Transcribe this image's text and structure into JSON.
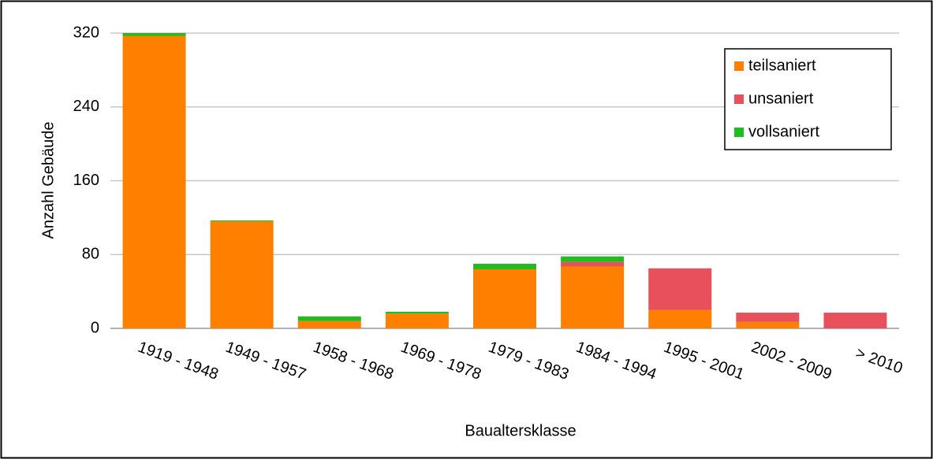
{
  "chart_data": {
    "type": "stacked_bar",
    "categories": [
      "1919 - 1948",
      "1949 - 1957",
      "1958 - 1968",
      "1969 - 1978",
      "1979 - 1983",
      "1984 - 1994",
      "1995 - 2001",
      "2002 - 2009",
      "> 2010"
    ],
    "series": [
      {
        "name": "teilsaniert",
        "color": "#ff8000",
        "values": [
          317,
          116,
          8,
          16,
          64,
          67,
          20,
          7,
          0
        ]
      },
      {
        "name": "unsaniert",
        "color": "#e8505b",
        "values": [
          0,
          0,
          0,
          0,
          0,
          5,
          45,
          10,
          17
        ]
      },
      {
        "name": "vollsaniert",
        "color": "#22bb22",
        "values": [
          3,
          1,
          5,
          2,
          6,
          6,
          0,
          0,
          0
        ]
      }
    ],
    "y_label": "Anzahl Gebäude",
    "x_label": "Baualtersklasse",
    "ylim": [
      0,
      320
    ],
    "yticks": [
      0,
      80,
      160,
      240,
      320
    ],
    "grid": true,
    "legend": "upper right"
  }
}
